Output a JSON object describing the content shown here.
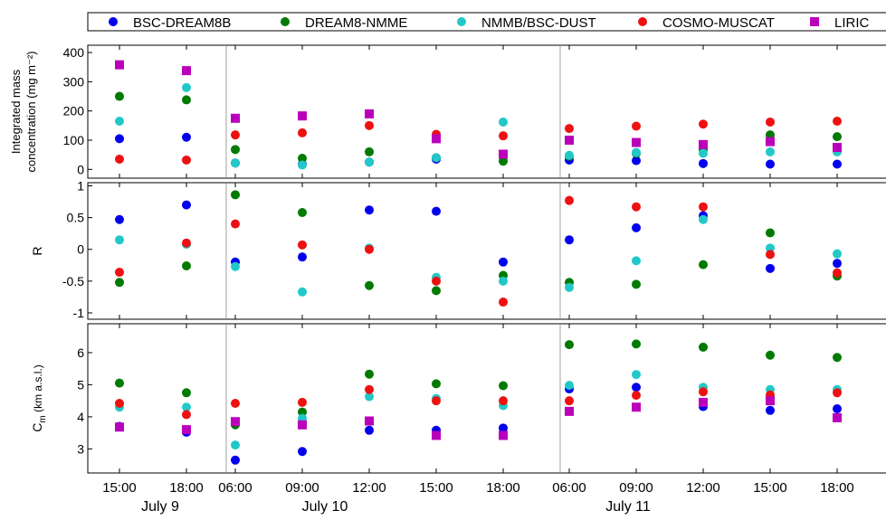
{
  "chart_data": {
    "type": "scatter",
    "legend": {
      "placement": "top",
      "entries": [
        {
          "name": "BSC-DREAM8B",
          "color": "#0000ee",
          "marker": "circle"
        },
        {
          "name": "DREAM8-NMME",
          "color": "#007a00",
          "marker": "circle"
        },
        {
          "name": "NMMB/BSC-DUST",
          "color": "#22c8c8",
          "marker": "circle"
        },
        {
          "name": "COSMO-MUSCAT",
          "color": "#ee1111",
          "marker": "circle"
        },
        {
          "name": "LIRIC",
          "color": "#bb00bb",
          "marker": "square"
        }
      ]
    },
    "x_ticks": [
      "15:00",
      "18:00",
      "06:00",
      "09:00",
      "12:00",
      "15:00",
      "18:00",
      "06:00",
      "09:00",
      "12:00",
      "15:00",
      "18:00"
    ],
    "day_labels": [
      {
        "label": "July 9",
        "start": 0,
        "end": 1
      },
      {
        "label": "July 10",
        "start": 2,
        "end": 6
      },
      {
        "label": "July 11",
        "start": 7,
        "end": 11
      }
    ],
    "day_separators_after": [
      1,
      6
    ],
    "panels": [
      {
        "id": "mass",
        "ylabel_lines": [
          "Integrated mass",
          "concentration (mg m⁻²)"
        ],
        "ylim": [
          -30,
          425
        ],
        "yticks": [
          0,
          100,
          200,
          300,
          400
        ],
        "ytick_labels": [
          "0",
          "100",
          "200",
          "300",
          "400"
        ],
        "series": [
          {
            "name": "BSC-DREAM8B",
            "values": [
              105,
              110,
              22,
              18,
              25,
              35,
              null,
              32,
              30,
              20,
              18,
              18
            ]
          },
          {
            "name": "DREAM8-NMME",
            "values": [
              250,
              238,
              68,
              38,
              60,
              40,
              28,
              45,
              55,
              68,
              118,
              112
            ]
          },
          {
            "name": "NMMB/BSC-DUST",
            "values": [
              165,
              280,
              22,
              15,
              25,
              40,
              162,
              48,
              58,
              55,
              60,
              60
            ]
          },
          {
            "name": "COSMO-MUSCAT",
            "values": [
              35,
              32,
              118,
              125,
              150,
              120,
              115,
              140,
              148,
              155,
              162,
              165
            ]
          },
          {
            "name": "LIRIC",
            "values": [
              358,
              338,
              175,
              183,
              190,
              105,
              52,
              100,
              92,
              85,
              95,
              75
            ]
          }
        ]
      },
      {
        "id": "R",
        "ylabel_lines": [
          "R"
        ],
        "ylim": [
          -1.1,
          1.05
        ],
        "yticks": [
          -1,
          -0.5,
          0,
          0.5,
          1
        ],
        "ytick_labels": [
          "-1",
          "-0.5",
          "0",
          "0.5",
          "1"
        ],
        "series": [
          {
            "name": "BSC-DREAM8B",
            "values": [
              0.47,
              0.7,
              -0.2,
              -0.12,
              0.62,
              0.6,
              -0.2,
              0.15,
              0.34,
              0.53,
              -0.3,
              -0.22
            ]
          },
          {
            "name": "DREAM8-NMME",
            "values": [
              -0.52,
              -0.26,
              0.86,
              0.58,
              -0.57,
              -0.65,
              -0.41,
              -0.52,
              -0.55,
              -0.24,
              0.26,
              -0.42
            ]
          },
          {
            "name": "NMMB/BSC-DUST",
            "values": [
              0.15,
              0.08,
              -0.27,
              -0.67,
              0.02,
              -0.44,
              -0.5,
              -0.6,
              -0.18,
              0.47,
              0.02,
              -0.07
            ]
          },
          {
            "name": "COSMO-MUSCAT",
            "values": [
              -0.36,
              0.1,
              0.4,
              0.07,
              0.0,
              -0.5,
              -0.83,
              0.77,
              0.67,
              0.67,
              -0.08,
              -0.37
            ]
          },
          {
            "name": "LIRIC",
            "values": [
              null,
              null,
              null,
              null,
              null,
              null,
              null,
              null,
              null,
              null,
              null,
              null
            ]
          }
        ]
      },
      {
        "id": "cm",
        "ylabel_lines": [
          "C",
          "m",
          "(km a.s.l.)"
        ],
        "ylim": [
          2.25,
          6.9
        ],
        "yticks": [
          3,
          4,
          5,
          6
        ],
        "ytick_labels": [
          "3",
          "4",
          "5",
          "6"
        ],
        "series": [
          {
            "name": "BSC-DREAM8B",
            "values": [
              3.7,
              3.52,
              2.65,
              2.92,
              3.58,
              3.58,
              3.65,
              4.87,
              4.92,
              4.32,
              4.2,
              4.25
            ]
          },
          {
            "name": "DREAM8-NMME",
            "values": [
              5.05,
              4.75,
              3.75,
              4.15,
              5.33,
              5.03,
              4.97,
              6.25,
              6.27,
              6.17,
              5.92,
              5.85
            ]
          },
          {
            "name": "NMMB/BSC-DUST",
            "values": [
              4.3,
              4.3,
              3.12,
              3.95,
              4.63,
              4.57,
              4.35,
              4.98,
              5.32,
              4.92,
              4.85,
              4.85
            ]
          },
          {
            "name": "COSMO-MUSCAT",
            "values": [
              4.42,
              4.07,
              4.42,
              4.45,
              4.85,
              4.5,
              4.5,
              4.5,
              4.67,
              4.78,
              4.68,
              4.75
            ]
          },
          {
            "name": "LIRIC",
            "values": [
              3.68,
              3.6,
              3.85,
              3.75,
              3.87,
              3.42,
              3.42,
              4.17,
              4.3,
              4.45,
              4.5,
              3.97
            ]
          }
        ]
      }
    ]
  }
}
